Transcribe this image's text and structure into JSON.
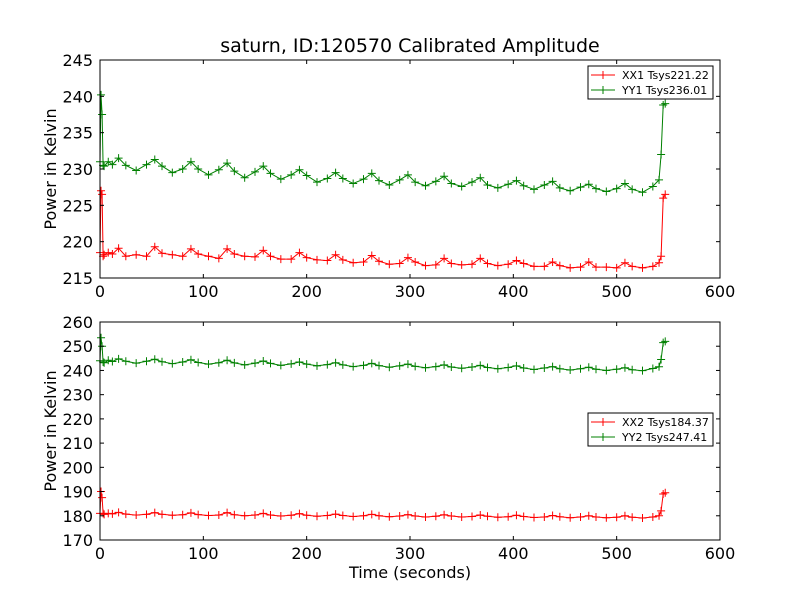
{
  "chart_data": [
    {
      "type": "line",
      "title": "saturn, ID:120570 Calibrated Amplitude",
      "xlabel": "",
      "ylabel": "Power in Kelvin",
      "xlim": [
        0,
        600
      ],
      "ylim": [
        215,
        245
      ],
      "x_ticks": [
        "0",
        "100",
        "200",
        "300",
        "400",
        "500",
        "600"
      ],
      "y_ticks": [
        "215",
        "220",
        "225",
        "230",
        "235",
        "240",
        "245"
      ],
      "grid": false,
      "legend_position": "top-right",
      "series": [
        {
          "name": "XX1 Tsys221.22",
          "color": "#ff0000",
          "marker": "plus",
          "x": [
            0,
            1,
            2,
            3,
            4,
            8,
            12,
            18,
            25,
            35,
            45,
            53,
            60,
            70,
            80,
            88,
            95,
            105,
            115,
            123,
            130,
            140,
            150,
            158,
            165,
            175,
            185,
            193,
            200,
            210,
            220,
            228,
            235,
            245,
            255,
            263,
            270,
            280,
            290,
            298,
            305,
            315,
            325,
            333,
            340,
            350,
            360,
            368,
            375,
            385,
            395,
            403,
            410,
            420,
            430,
            438,
            445,
            455,
            465,
            473,
            480,
            490,
            500,
            508,
            515,
            525,
            535,
            541,
            543,
            545,
            547
          ],
          "y": [
            218.5,
            227.0,
            226.5,
            218.0,
            218.2,
            218.5,
            218.3,
            219.1,
            218.0,
            218.2,
            218.0,
            219.3,
            218.4,
            218.2,
            218.0,
            219.0,
            218.3,
            218.0,
            217.7,
            219.0,
            218.3,
            218.0,
            217.9,
            218.8,
            218.0,
            217.6,
            217.6,
            218.5,
            217.8,
            217.5,
            217.4,
            218.2,
            217.5,
            217.1,
            217.2,
            218.1,
            217.3,
            216.9,
            217.0,
            217.8,
            217.2,
            216.7,
            216.8,
            217.7,
            217.0,
            216.8,
            216.9,
            217.7,
            217.0,
            216.7,
            216.9,
            217.4,
            217.0,
            216.6,
            216.6,
            217.2,
            216.7,
            216.4,
            216.5,
            217.2,
            216.5,
            216.5,
            216.4,
            217.1,
            216.6,
            216.4,
            216.6,
            217.1,
            218.0,
            226.0,
            226.5
          ]
        },
        {
          "name": "YY1 Tsys236.01",
          "color": "#008000",
          "marker": "plus",
          "x": [
            0,
            1,
            2,
            3,
            4,
            8,
            12,
            18,
            25,
            35,
            45,
            53,
            60,
            70,
            80,
            88,
            95,
            105,
            115,
            123,
            130,
            140,
            150,
            158,
            165,
            175,
            185,
            193,
            200,
            210,
            220,
            228,
            235,
            245,
            255,
            263,
            270,
            280,
            290,
            298,
            305,
            315,
            325,
            333,
            340,
            350,
            360,
            368,
            375,
            385,
            395,
            403,
            410,
            420,
            430,
            438,
            445,
            455,
            465,
            473,
            480,
            490,
            500,
            508,
            515,
            525,
            535,
            541,
            543,
            545,
            547
          ],
          "y": [
            231.0,
            240.2,
            237.5,
            230.5,
            230.4,
            231.0,
            230.6,
            231.5,
            230.5,
            229.8,
            230.6,
            231.3,
            230.4,
            229.5,
            230.0,
            231.0,
            230.0,
            229.2,
            229.9,
            230.8,
            229.7,
            228.8,
            229.6,
            230.4,
            229.4,
            228.6,
            229.2,
            229.9,
            229.1,
            228.2,
            228.7,
            229.5,
            228.7,
            228.0,
            228.6,
            229.4,
            228.4,
            227.8,
            228.5,
            229.2,
            228.2,
            227.7,
            228.3,
            229.0,
            228.0,
            227.6,
            228.2,
            228.8,
            227.8,
            227.4,
            227.9,
            228.4,
            227.7,
            227.2,
            227.8,
            228.3,
            227.4,
            227.0,
            227.5,
            227.9,
            227.3,
            226.9,
            227.3,
            228.0,
            227.2,
            226.8,
            227.6,
            228.5,
            232.0,
            238.8,
            239.0
          ]
        }
      ]
    },
    {
      "type": "line",
      "title": "",
      "xlabel": "Time (seconds)",
      "ylabel": "Power in Kelvin",
      "xlim": [
        0,
        600
      ],
      "ylim": [
        170,
        260
      ],
      "x_ticks": [
        "0",
        "100",
        "200",
        "300",
        "400",
        "500",
        "600"
      ],
      "y_ticks": [
        "170",
        "180",
        "190",
        "200",
        "210",
        "220",
        "230",
        "240",
        "250",
        "260"
      ],
      "grid": false,
      "legend_position": "center-right",
      "series": [
        {
          "name": "XX2 Tsys184.37",
          "color": "#ff0000",
          "marker": "plus",
          "x": [
            0,
            1,
            2,
            3,
            4,
            8,
            12,
            18,
            25,
            35,
            45,
            53,
            60,
            70,
            80,
            88,
            95,
            105,
            115,
            123,
            130,
            140,
            150,
            158,
            165,
            175,
            185,
            193,
            200,
            210,
            220,
            228,
            235,
            245,
            255,
            263,
            270,
            280,
            290,
            298,
            305,
            315,
            325,
            333,
            340,
            350,
            360,
            368,
            375,
            385,
            395,
            403,
            410,
            420,
            430,
            438,
            445,
            455,
            465,
            473,
            480,
            490,
            500,
            508,
            515,
            525,
            535,
            541,
            543,
            545,
            547
          ],
          "y": [
            181.0,
            190.0,
            187.5,
            181.0,
            180.6,
            181.0,
            180.8,
            181.4,
            180.7,
            180.3,
            180.6,
            181.3,
            180.6,
            180.2,
            180.4,
            181.2,
            180.5,
            180.1,
            180.3,
            181.3,
            180.4,
            180.0,
            180.3,
            181.0,
            180.3,
            179.9,
            180.2,
            180.9,
            180.2,
            179.8,
            180.1,
            180.7,
            180.1,
            179.7,
            180.0,
            180.6,
            180.0,
            179.6,
            179.9,
            180.5,
            179.9,
            179.5,
            179.8,
            180.4,
            179.9,
            179.5,
            179.7,
            180.3,
            179.8,
            179.4,
            179.6,
            180.2,
            179.7,
            179.3,
            179.5,
            180.1,
            179.6,
            179.2,
            179.5,
            180.0,
            179.5,
            179.2,
            179.4,
            180.0,
            179.4,
            179.1,
            179.5,
            180.0,
            182.0,
            189.0,
            189.5
          ]
        },
        {
          "name": "YY2 Tsys247.41",
          "color": "#008000",
          "marker": "plus",
          "x": [
            0,
            1,
            2,
            3,
            4,
            8,
            12,
            18,
            25,
            35,
            45,
            53,
            60,
            70,
            80,
            88,
            95,
            105,
            115,
            123,
            130,
            140,
            150,
            158,
            165,
            175,
            185,
            193,
            200,
            210,
            220,
            228,
            235,
            245,
            255,
            263,
            270,
            280,
            290,
            298,
            305,
            315,
            325,
            333,
            340,
            350,
            360,
            368,
            375,
            385,
            395,
            403,
            410,
            420,
            430,
            438,
            445,
            455,
            465,
            473,
            480,
            490,
            500,
            508,
            515,
            525,
            535,
            541,
            543,
            545,
            547
          ],
          "y": [
            244.0,
            253.5,
            250.0,
            243.5,
            243.2,
            244.2,
            243.7,
            244.8,
            243.8,
            243.0,
            243.8,
            244.6,
            243.6,
            242.8,
            243.5,
            244.4,
            243.3,
            242.6,
            243.2,
            244.2,
            243.1,
            242.3,
            243.0,
            243.9,
            242.9,
            242.1,
            242.7,
            243.5,
            242.6,
            241.9,
            242.4,
            243.2,
            242.3,
            241.6,
            242.1,
            242.9,
            242.0,
            241.3,
            241.9,
            242.6,
            241.7,
            241.1,
            241.6,
            242.3,
            241.4,
            240.9,
            241.4,
            242.1,
            241.2,
            240.7,
            241.2,
            241.9,
            241.0,
            240.4,
            241.0,
            241.6,
            240.7,
            240.2,
            240.7,
            241.3,
            240.5,
            240.0,
            240.5,
            241.1,
            240.3,
            239.9,
            240.8,
            241.5,
            244.5,
            251.5,
            252.0
          ]
        }
      ]
    }
  ]
}
